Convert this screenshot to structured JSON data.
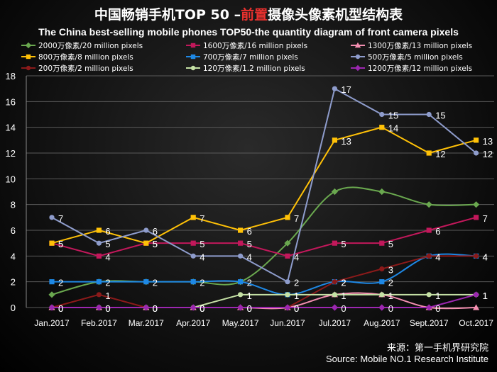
{
  "title_cn_a": "中国畅销手机TOP 50 –",
  "title_cn_b": "前置",
  "title_cn_c": "摄像头像素机型结构表",
  "title_en": "The China best-selling mobile phones TOP50-the quantity diagram of front camera pixels",
  "source_cn": "来源：第一手机界研究院",
  "source_en": "Source: Mobile NO.1 Research Institute",
  "chart_data": {
    "type": "line",
    "categories": [
      "Jan.2017",
      "Feb.2017",
      "Mar.2017",
      "Apr.2017",
      "May.2017",
      "Jun.2017",
      "Jul.2017",
      "Aug.2017",
      "Sept.2017",
      "Oct.2017"
    ],
    "ylim": [
      0,
      18
    ],
    "yticks": [
      0,
      2,
      4,
      6,
      8,
      10,
      12,
      14,
      16,
      18
    ],
    "grid": true,
    "legend_position": "top",
    "series": [
      {
        "name": "2000万像素/20 million pixels",
        "color": "#6aa84f",
        "marker": "diamond",
        "smooth": true,
        "labels": false,
        "values": [
          1,
          2,
          2,
          2,
          2,
          5,
          9,
          9,
          8,
          8
        ]
      },
      {
        "name": "1600万像素/16 million pixels",
        "color": "#c2185b",
        "marker": "square",
        "smooth": false,
        "labels": true,
        "values": [
          5,
          4,
          5,
          5,
          5,
          4,
          5,
          5,
          6,
          7
        ]
      },
      {
        "name": "1300万像素/13 million pixels",
        "color": "#f48fb1",
        "marker": "triangle",
        "smooth": true,
        "labels": false,
        "values": [
          0,
          0,
          0,
          0,
          0,
          0,
          1,
          1,
          0,
          0
        ]
      },
      {
        "name": "800万像素/8 million pixels",
        "color": "#ffc107",
        "marker": "square",
        "smooth": false,
        "labels": true,
        "values": [
          5,
          6,
          5,
          7,
          6,
          7,
          13,
          14,
          12,
          13
        ]
      },
      {
        "name": "700万像素/7 million pixels",
        "color": "#1e88e5",
        "marker": "square",
        "smooth": true,
        "labels": true,
        "values": [
          2,
          2,
          2,
          2,
          2,
          1,
          2,
          2,
          4,
          4
        ]
      },
      {
        "name": "500万像素/5 million pixels",
        "color": "#8e9ccc",
        "marker": "circle",
        "smooth": false,
        "labels": true,
        "values": [
          7,
          5,
          6,
          4,
          4,
          2,
          17,
          15,
          15,
          12
        ]
      },
      {
        "name": "200万像素/2 million pixels",
        "color": "#8b1a1a",
        "marker": "circle",
        "smooth": false,
        "labels": true,
        "values": [
          0,
          1,
          0,
          0,
          0,
          0,
          2,
          3,
          4,
          4
        ]
      },
      {
        "name": "120万像素/1.2 million pixels",
        "color": "#c5e1a5",
        "marker": "circle",
        "smooth": false,
        "labels": true,
        "values": [
          0,
          0,
          0,
          0,
          1,
          1,
          1,
          1,
          1,
          1
        ]
      },
      {
        "name": "1200万像素/12 million pixels",
        "color": "#9c27b0",
        "marker": "diamond",
        "smooth": false,
        "labels": true,
        "values": [
          0,
          0,
          0,
          0,
          0,
          0,
          0,
          0,
          0,
          1
        ]
      }
    ]
  }
}
